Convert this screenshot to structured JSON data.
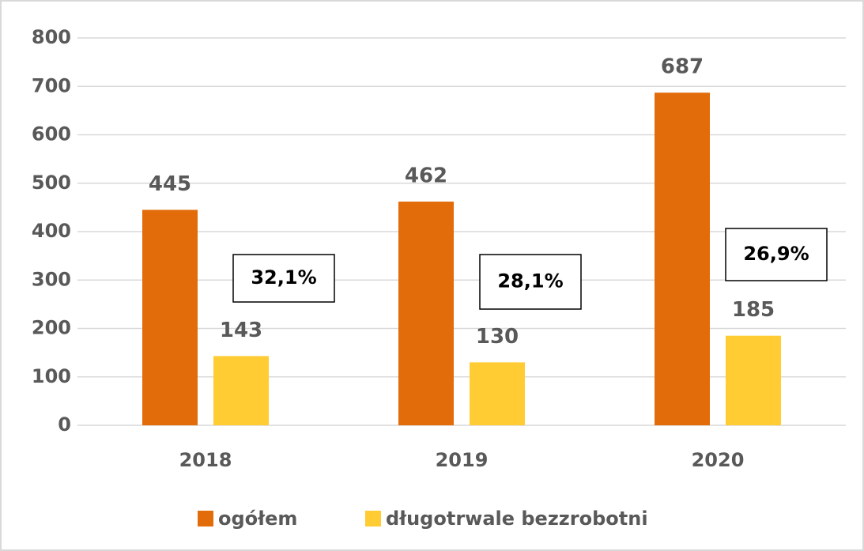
{
  "chart_data": {
    "type": "bar",
    "categories": [
      "2018",
      "2019",
      "2020"
    ],
    "series": [
      {
        "name": "ogółem",
        "color": "#e36c0a",
        "values": [
          445,
          462,
          687
        ]
      },
      {
        "name": "długotrwale bezzrobotni",
        "color": "#ffcc33",
        "values": [
          143,
          130,
          185
        ]
      }
    ],
    "annotations": [
      "32,1%",
      "28,1%",
      "26,9%"
    ],
    "ylim": [
      0,
      800
    ],
    "yticks": [
      0,
      100,
      200,
      300,
      400,
      500,
      600,
      700,
      800
    ],
    "grid": true,
    "legend": "bottom"
  }
}
